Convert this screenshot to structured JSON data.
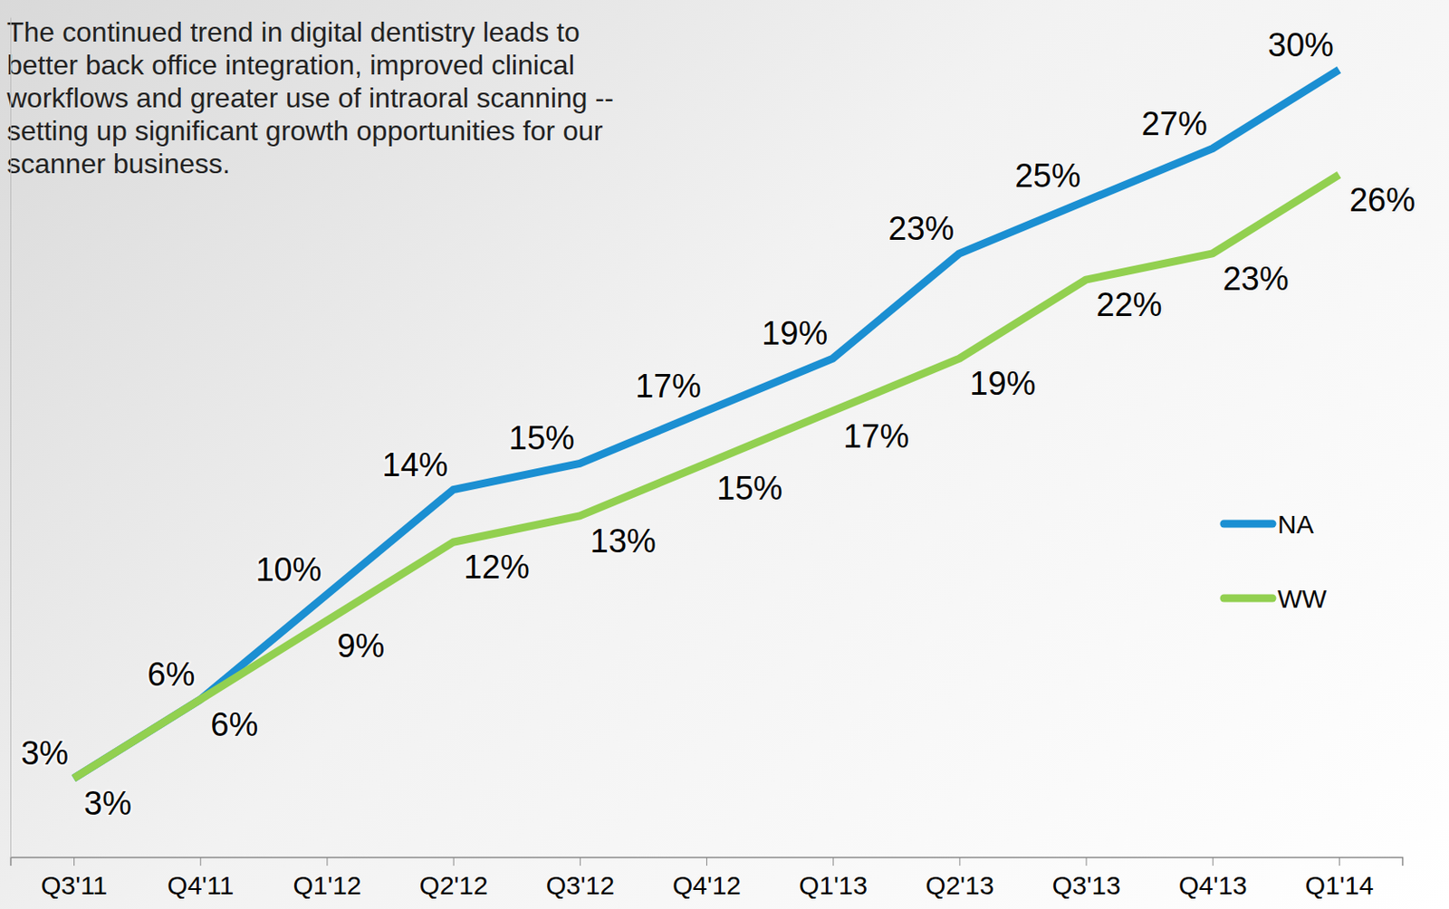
{
  "chart_data": {
    "type": "line",
    "annotations": [
      "The continued trend in digital dentistry leads to better back office integration, improved clinical workflows and greater use of intraoral scanning -- setting up significant growth opportunities for our scanner business."
    ],
    "categories": [
      "Q3'11",
      "Q4'11",
      "Q1'12",
      "Q2'12",
      "Q3'12",
      "Q4'12",
      "Q1'13",
      "Q2'13",
      "Q3'13",
      "Q4'13",
      "Q1'14"
    ],
    "series": [
      {
        "name": "NA",
        "color": "#1b8fd2",
        "values": [
          3,
          6,
          10,
          14,
          15,
          17,
          19,
          23,
          25,
          27,
          30
        ],
        "value_labels": [
          "3%",
          "6%",
          "10%",
          "14%",
          "15%",
          "17%",
          "19%",
          "23%",
          "25%",
          "27%",
          "30%"
        ]
      },
      {
        "name": "WW",
        "color": "#92d050",
        "values": [
          3,
          6,
          9,
          12,
          13,
          15,
          17,
          19,
          22,
          23,
          26
        ],
        "value_labels": [
          "3%",
          "6%",
          "9%",
          "12%",
          "13%",
          "15%",
          "17%",
          "19%",
          "22%",
          "23%",
          "26%"
        ]
      }
    ],
    "ylim": [
      0,
      32
    ],
    "data_labels": true,
    "legend": "right",
    "tick_labels": "x",
    "grid": false
  }
}
